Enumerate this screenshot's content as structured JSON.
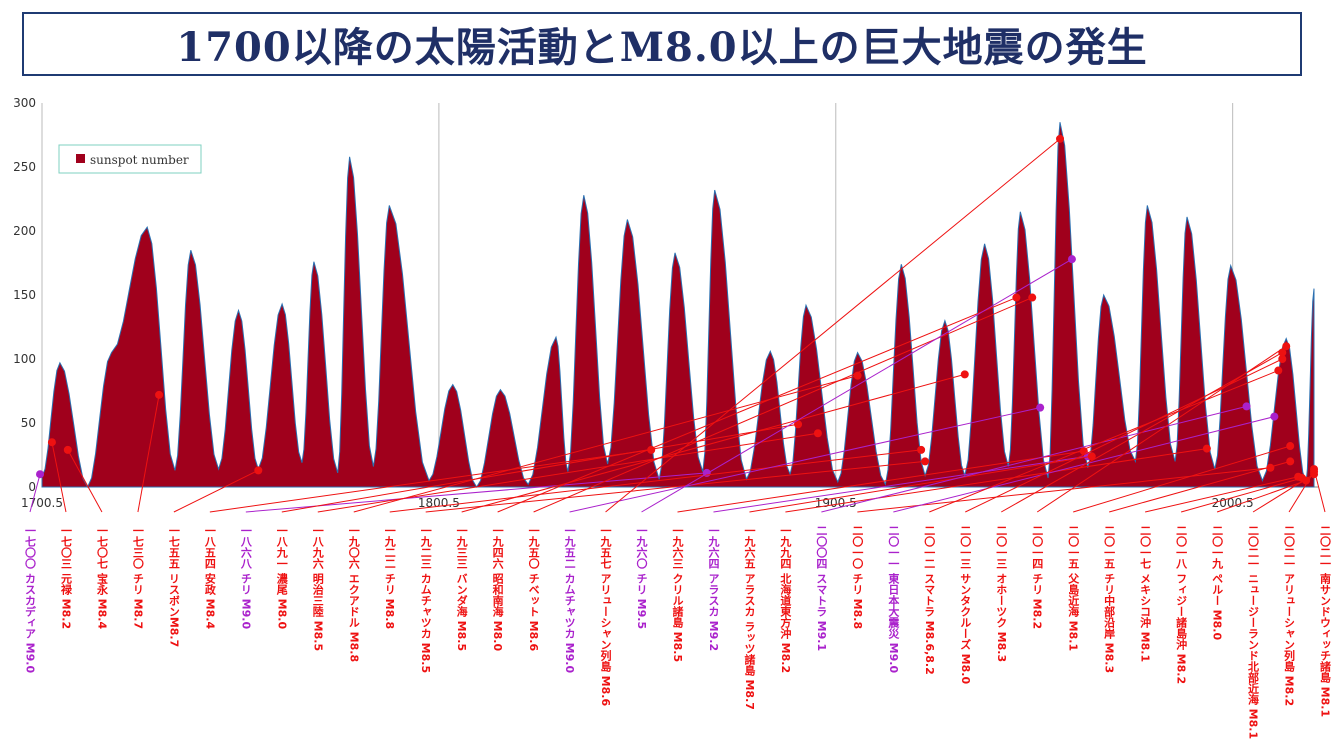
{
  "title": "1700以降の太陽活動とM8.0以上の巨大地震の発生",
  "chart_data": {
    "type": "area",
    "title": "1700以降の太陽活動とM8.0以上の巨大地震の発生",
    "xlabel": "",
    "ylabel": "",
    "xlim": [
      1700.5,
      2022
    ],
    "ylim": [
      0,
      300
    ],
    "y_ticks": [
      0,
      50,
      100,
      150,
      200,
      250,
      300
    ],
    "x_ticks": [
      "1700.5",
      "1800.5",
      "1900.5",
      "2000.5"
    ],
    "x_tick_values": [
      1700.5,
      1800.5,
      1900.5,
      2000.5
    ],
    "grid": "vertical",
    "legend_position": "top-left",
    "series": [
      {
        "name": "sunspot number",
        "color": "#a0001c",
        "peaks": [
          [
            1700.5,
            8
          ],
          [
            1705,
            97
          ],
          [
            1712,
            0
          ],
          [
            1718,
            105
          ],
          [
            1727,
            203
          ],
          [
            1734,
            13
          ],
          [
            1738,
            185
          ],
          [
            1745,
            14
          ],
          [
            1750,
            138
          ],
          [
            1755,
            14
          ],
          [
            1761,
            143
          ],
          [
            1766,
            19
          ],
          [
            1769,
            176
          ],
          [
            1775,
            11
          ],
          [
            1778,
            258
          ],
          [
            1784,
            16
          ],
          [
            1788,
            220
          ],
          [
            1798,
            5
          ],
          [
            1804,
            80
          ],
          [
            1810,
            0
          ],
          [
            1816,
            76
          ],
          [
            1823,
            2
          ],
          [
            1830,
            117
          ],
          [
            1833,
            12
          ],
          [
            1837,
            228
          ],
          [
            1843,
            18
          ],
          [
            1848,
            209
          ],
          [
            1856,
            6
          ],
          [
            1860,
            183
          ],
          [
            1867,
            12
          ],
          [
            1870,
            232
          ],
          [
            1878,
            6
          ],
          [
            1884,
            106
          ],
          [
            1889,
            10
          ],
          [
            1893,
            142
          ],
          [
            1901,
            4
          ],
          [
            1906,
            105
          ],
          [
            1913,
            2
          ],
          [
            1917,
            174
          ],
          [
            1923,
            9
          ],
          [
            1928,
            130
          ],
          [
            1933,
            9
          ],
          [
            1938,
            190
          ],
          [
            1944,
            16
          ],
          [
            1947,
            215
          ],
          [
            1954,
            7
          ],
          [
            1957,
            285
          ],
          [
            1964,
            15
          ],
          [
            1968,
            150
          ],
          [
            1976,
            20
          ],
          [
            1979,
            220
          ],
          [
            1986,
            20
          ],
          [
            1989,
            211
          ],
          [
            1996,
            14
          ],
          [
            2000,
            173
          ],
          [
            2008,
            5
          ],
          [
            2014,
            116
          ],
          [
            2019,
            4
          ],
          [
            2021,
            155
          ]
        ]
      }
    ],
    "earthquake_markers": [
      {
        "year": 1700,
        "value": 10,
        "color": "#aa22cc",
        "label": "一七〇〇 カスカディア M9.0"
      },
      {
        "year": 1703,
        "value": 35,
        "color": "#ee1111",
        "label": "一七〇三 元禄 M8.2"
      },
      {
        "year": 1707,
        "value": 29,
        "color": "#ee1111",
        "label": "一七〇七 宝永 M8.4"
      },
      {
        "year": 1730,
        "value": 72,
        "color": "#ee1111",
        "label": "一七三〇 チリ M8.7"
      },
      {
        "year": 1755,
        "value": 13,
        "color": "#ee1111",
        "label": "一七五五 リスボンM8.7"
      },
      {
        "year": 1854,
        "value": 29,
        "color": "#ee1111",
        "label": "一八五四 安政 M8.4"
      },
      {
        "year": 1868,
        "value": 11,
        "color": "#aa22cc",
        "label": "一八六八 チリ M9.0"
      },
      {
        "year": 1891,
        "value": 49,
        "color": "#ee1111",
        "label": "一八九一 濃尾 M8.0"
      },
      {
        "year": 1896,
        "value": 42,
        "color": "#ee1111",
        "label": "一八九六 明治三陸 M8.5"
      },
      {
        "year": 1906,
        "value": 87,
        "color": "#ee1111",
        "label": "一九〇六 エクアドル M8.8"
      },
      {
        "year": 1922,
        "value": 29,
        "color": "#ee1111",
        "label": "一九二二 チリ M8.8"
      },
      {
        "year": 1923,
        "value": 20,
        "color": "#ee1111",
        "label": "一九二三 カムチャツカ M8.5"
      },
      {
        "year": 1933,
        "value": 88,
        "color": "#ee1111",
        "label": "一九三三 バンダ海 M8.5"
      },
      {
        "year": 1946,
        "value": 148,
        "color": "#ee1111",
        "label": "一九四六 昭和南海 M8.0"
      },
      {
        "year": 1950,
        "value": 148,
        "color": "#ee1111",
        "label": "一九五〇 チベット M8.6"
      },
      {
        "year": 1952,
        "value": 62,
        "color": "#aa22cc",
        "label": "一九五二 カムチャツカ M9.0"
      },
      {
        "year": 1957,
        "value": 272,
        "color": "#ee1111",
        "label": "一九五七 アリューシャン列島 M8.6"
      },
      {
        "year": 1960,
        "value": 178,
        "color": "#aa22cc",
        "label": "一九六〇 チリ M9.5"
      },
      {
        "year": 1963,
        "value": 28,
        "color": "#ee1111",
        "label": "一九六三 クリル諸島 M8.5"
      },
      {
        "year": 1964,
        "value": 24,
        "color": "#aa22cc",
        "label": "一九六四 アラスカ M9.2"
      },
      {
        "year": 1965,
        "value": 24,
        "color": "#ee1111",
        "label": "一九六五 アラスカ ラッツ諸島 M8.7"
      },
      {
        "year": 1994,
        "value": 30,
        "color": "#ee1111",
        "label": "一九九四 北海道東方沖 M8.2"
      },
      {
        "year": 2004,
        "value": 63,
        "color": "#aa22cc",
        "label": "二〇〇四 スマトラ M9.1"
      },
      {
        "year": 2010,
        "value": 15,
        "color": "#ee1111",
        "label": "二〇一〇 チリ M8.8"
      },
      {
        "year": 2011,
        "value": 55,
        "color": "#aa22cc",
        "label": "二〇一一 東日本大震災 M9.0"
      },
      {
        "year": 2012,
        "value": 91,
        "color": "#ee1111",
        "label": "二〇一二 スマトラ M8.6,8.2"
      },
      {
        "year": 2013,
        "value": 100,
        "color": "#ee1111",
        "label": "二〇一三 サンタクルーズ M8.0"
      },
      {
        "year": 2013,
        "value": 105,
        "color": "#ee1111",
        "label": "二〇一三 オホーツク M8.3"
      },
      {
        "year": 2014,
        "value": 110,
        "color": "#ee1111",
        "label": "二〇一四 チリ M8.2"
      },
      {
        "year": 2015,
        "value": 32,
        "color": "#ee1111",
        "label": "二〇一五 父島近海 M8.1"
      },
      {
        "year": 2015,
        "value": 20,
        "color": "#ee1111",
        "label": "二〇一五 チリ中部沿岸 M8.3"
      },
      {
        "year": 2017,
        "value": 8,
        "color": "#ee1111",
        "label": "二〇一七 メキシコ沖 M8.1"
      },
      {
        "year": 2018,
        "value": 7,
        "color": "#ee1111",
        "label": "二〇一八 フィジー諸島沖 M8.2"
      },
      {
        "year": 2019,
        "value": 5,
        "color": "#ee1111",
        "label": "二〇一九 ペルー M8.0"
      },
      {
        "year": 2021,
        "value": 10,
        "color": "#ee1111",
        "label": "二〇二一 ニュージーランド北部近海 M8.1"
      },
      {
        "year": 2021,
        "value": 12,
        "color": "#ee1111",
        "label": "二〇二一 アリューシャン列島 M8.2"
      },
      {
        "year": 2021,
        "value": 14,
        "color": "#ee1111",
        "label": "二〇二一 南サンドウィッチ諸島 M8.1"
      }
    ]
  }
}
